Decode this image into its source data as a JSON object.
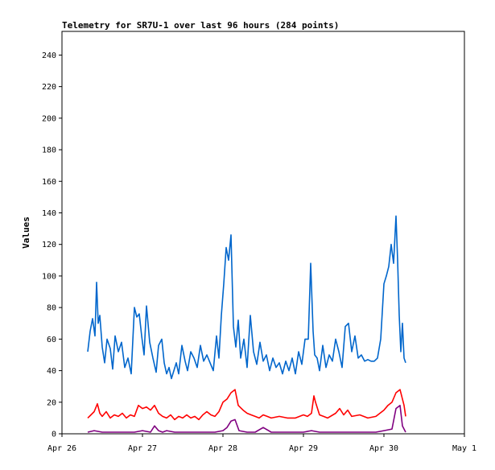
{
  "chart_data": {
    "type": "line",
    "title": "Telemetry for SR7U-1 over last 96 hours (284 points)",
    "ylabel": "Values",
    "xlabel": "",
    "ylim": [
      0,
      255
    ],
    "y_ticks": [
      0,
      20,
      40,
      60,
      80,
      100,
      120,
      140,
      160,
      180,
      200,
      220,
      240
    ],
    "x_ticks": [
      "Apr 26",
      "Apr 27",
      "Apr 28",
      "Apr 29",
      "Apr 30",
      "May 1"
    ],
    "xlim_days": [
      0,
      5
    ],
    "grid": false,
    "legend": "none",
    "series": [
      {
        "color": "#0066cc",
        "x": [
          0.32,
          0.35,
          0.38,
          0.41,
          0.43,
          0.45,
          0.47,
          0.5,
          0.53,
          0.56,
          0.6,
          0.63,
          0.66,
          0.7,
          0.74,
          0.78,
          0.82,
          0.86,
          0.9,
          0.93,
          0.96,
          0.99,
          1.02,
          1.05,
          1.09,
          1.13,
          1.17,
          1.2,
          1.24,
          1.27,
          1.3,
          1.33,
          1.36,
          1.39,
          1.42,
          1.45,
          1.49,
          1.53,
          1.56,
          1.6,
          1.64,
          1.68,
          1.72,
          1.76,
          1.8,
          1.84,
          1.88,
          1.92,
          1.95,
          1.98,
          2.01,
          2.04,
          2.07,
          2.1,
          2.13,
          2.16,
          2.19,
          2.22,
          2.26,
          2.3,
          2.34,
          2.38,
          2.42,
          2.46,
          2.5,
          2.54,
          2.58,
          2.62,
          2.66,
          2.7,
          2.74,
          2.78,
          2.82,
          2.86,
          2.9,
          2.94,
          2.98,
          3.02,
          3.06,
          3.09,
          3.12,
          3.14,
          3.17,
          3.2,
          3.24,
          3.28,
          3.32,
          3.36,
          3.4,
          3.44,
          3.48,
          3.52,
          3.56,
          3.6,
          3.64,
          3.68,
          3.72,
          3.76,
          3.8,
          3.84,
          3.88,
          3.92,
          3.96,
          4.0,
          4.03,
          4.06,
          4.09,
          4.12,
          4.15,
          4.17,
          4.19,
          4.21,
          4.23,
          4.25,
          4.27
        ],
        "values": [
          52,
          65,
          73,
          62,
          96,
          70,
          75,
          55,
          45,
          60,
          54,
          41,
          62,
          52,
          58,
          42,
          48,
          38,
          80,
          74,
          76,
          62,
          50,
          81,
          58,
          48,
          39,
          56,
          60,
          45,
          38,
          42,
          35,
          40,
          45,
          38,
          56,
          46,
          40,
          52,
          48,
          42,
          56,
          46,
          50,
          45,
          40,
          62,
          48,
          75,
          95,
          118,
          110,
          126,
          68,
          55,
          72,
          48,
          60,
          42,
          75,
          52,
          44,
          58,
          46,
          50,
          40,
          48,
          42,
          45,
          38,
          46,
          40,
          48,
          38,
          52,
          44,
          60,
          60,
          108,
          65,
          50,
          48,
          40,
          56,
          42,
          50,
          46,
          60,
          52,
          42,
          68,
          70,
          52,
          62,
          48,
          50,
          46,
          47,
          46,
          46,
          48,
          60,
          95,
          100,
          106,
          120,
          108,
          138,
          110,
          75,
          52,
          70,
          48,
          45
        ]
      },
      {
        "color": "#ff0000",
        "x": [
          0.32,
          0.36,
          0.4,
          0.44,
          0.47,
          0.5,
          0.55,
          0.6,
          0.65,
          0.7,
          0.75,
          0.8,
          0.85,
          0.9,
          0.95,
          1.0,
          1.05,
          1.1,
          1.15,
          1.2,
          1.25,
          1.3,
          1.35,
          1.4,
          1.45,
          1.5,
          1.55,
          1.6,
          1.65,
          1.7,
          1.75,
          1.8,
          1.85,
          1.9,
          1.95,
          2.0,
          2.05,
          2.1,
          2.15,
          2.19,
          2.25,
          2.3,
          2.35,
          2.4,
          2.45,
          2.5,
          2.55,
          2.6,
          2.7,
          2.8,
          2.9,
          3.0,
          3.05,
          3.1,
          3.13,
          3.15,
          3.2,
          3.25,
          3.3,
          3.4,
          3.45,
          3.5,
          3.55,
          3.6,
          3.7,
          3.8,
          3.9,
          4.0,
          4.05,
          4.1,
          4.15,
          4.2,
          4.25,
          4.27
        ],
        "values": [
          10,
          12,
          14,
          19,
          13,
          11,
          14,
          10,
          12,
          11,
          13,
          10,
          12,
          11,
          18,
          16,
          17,
          15,
          18,
          13,
          11,
          10,
          12,
          9,
          11,
          10,
          12,
          10,
          11,
          9,
          12,
          14,
          12,
          11,
          14,
          20,
          22,
          26,
          28,
          18,
          15,
          13,
          12,
          11,
          10,
          12,
          11,
          10,
          11,
          10,
          10,
          12,
          11,
          13,
          24,
          20,
          12,
          11,
          10,
          13,
          16,
          12,
          15,
          11,
          12,
          10,
          11,
          15,
          18,
          20,
          26,
          28,
          18,
          11
        ]
      },
      {
        "color": "#800080",
        "x": [
          0.32,
          0.4,
          0.5,
          0.6,
          0.7,
          0.8,
          0.9,
          1.0,
          1.1,
          1.15,
          1.2,
          1.25,
          1.3,
          1.4,
          1.5,
          1.6,
          1.7,
          1.8,
          1.9,
          2.0,
          2.05,
          2.1,
          2.15,
          2.2,
          2.3,
          2.4,
          2.5,
          2.6,
          2.7,
          2.8,
          2.9,
          3.0,
          3.1,
          3.2,
          3.3,
          3.4,
          3.5,
          3.6,
          3.7,
          3.8,
          3.9,
          4.0,
          4.1,
          4.15,
          4.2,
          4.23,
          4.27
        ],
        "values": [
          1,
          2,
          1,
          1,
          1,
          1,
          1,
          2,
          1,
          5,
          2,
          1,
          2,
          1,
          1,
          1,
          1,
          1,
          1,
          2,
          4,
          8,
          9,
          2,
          1,
          1,
          4,
          1,
          1,
          1,
          1,
          1,
          2,
          1,
          1,
          1,
          1,
          1,
          1,
          1,
          1,
          2,
          3,
          16,
          18,
          5,
          1
        ]
      }
    ]
  }
}
